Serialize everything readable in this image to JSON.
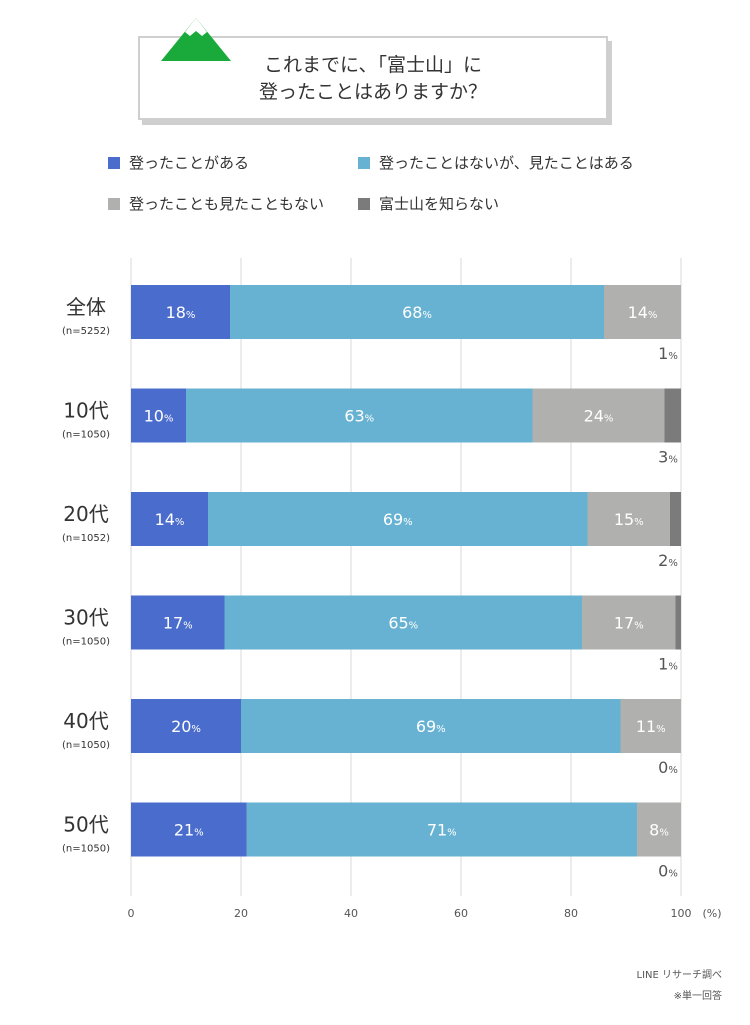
{
  "title": {
    "line1": "これまでに、「富士山」に",
    "line2": "登ったことはありますか？"
  },
  "colors": {
    "climbed": "#4a6ccc",
    "seen": "#67b2d2",
    "neither": "#b0b0ae",
    "unknown": "#7b7b7b",
    "title_icon": "#1aaa3c"
  },
  "chart_data": {
    "type": "bar",
    "orientation": "horizontal",
    "stacked": true,
    "title": "これまでに、「富士山」に登ったことはありますか？",
    "categories": [
      "全体",
      "10代",
      "20代",
      "30代",
      "40代",
      "50代"
    ],
    "category_notes": [
      "(n=5252)",
      "(n=1050)",
      "(n=1052)",
      "(n=1050)",
      "(n=1050)",
      "(n=1050)"
    ],
    "series": [
      {
        "name": "登ったことがある",
        "values": [
          18,
          10,
          14,
          17,
          20,
          21
        ]
      },
      {
        "name": "登ったことはないが、見たことはある",
        "values": [
          68,
          63,
          69,
          65,
          69,
          71
        ]
      },
      {
        "name": "登ったことも見たこともない",
        "values": [
          14,
          24,
          15,
          17,
          11,
          8
        ]
      },
      {
        "name": "富士山を知らない",
        "values": [
          1,
          3,
          2,
          1,
          0,
          0
        ]
      }
    ],
    "value_suffix": "%",
    "xlim": [
      0,
      100
    ],
    "xticks": [
      0,
      20,
      40,
      60,
      80,
      100
    ],
    "xunit": "(%)",
    "grid": true,
    "legend_position": "top"
  },
  "footer": {
    "source": "LINE リサーチ調べ",
    "note": "※単一回答"
  }
}
